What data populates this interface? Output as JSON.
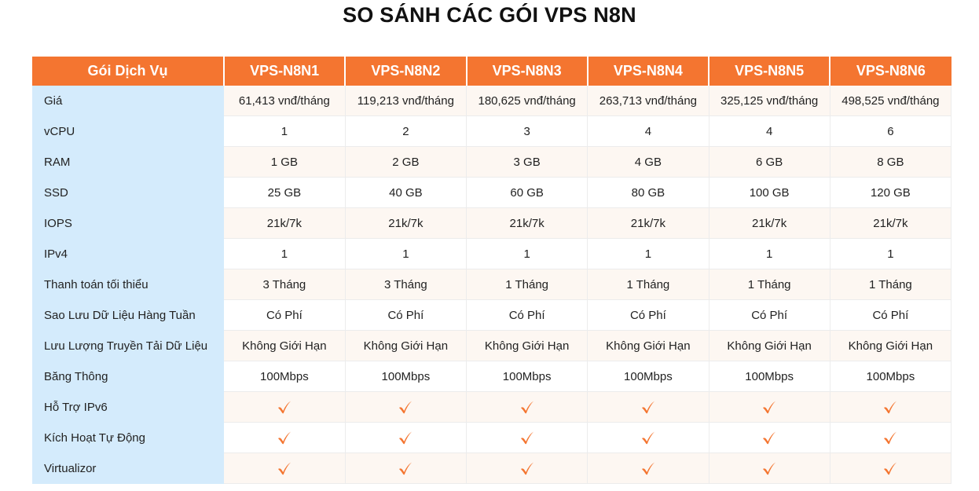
{
  "title": "SO SÁNH CÁC GÓI VPS N8N",
  "colors": {
    "header_bg": "#f47530",
    "label_bg": "#d4ebfc",
    "check": "#f47530"
  },
  "table": {
    "header": [
      "Gói Dịch Vụ",
      "VPS-N8N1",
      "VPS-N8N2",
      "VPS-N8N3",
      "VPS-N8N4",
      "VPS-N8N5",
      "VPS-N8N6"
    ],
    "rows": [
      {
        "label": "Giá",
        "values": [
          "61,413 vnđ/tháng",
          "119,213 vnđ/tháng",
          "180,625 vnđ/tháng",
          "263,713 vnđ/tháng",
          "325,125 vnđ/tháng",
          "498,525 vnđ/tháng"
        ]
      },
      {
        "label": "vCPU",
        "values": [
          "1",
          "2",
          "3",
          "4",
          "4",
          "6"
        ]
      },
      {
        "label": "RAM",
        "values": [
          "1 GB",
          "2 GB",
          "3 GB",
          "4 GB",
          "6 GB",
          "8 GB"
        ]
      },
      {
        "label": "SSD",
        "values": [
          "25 GB",
          "40 GB",
          "60 GB",
          "80 GB",
          "100 GB",
          "120 GB"
        ]
      },
      {
        "label": "IOPS",
        "values": [
          "21k/7k",
          "21k/7k",
          "21k/7k",
          "21k/7k",
          "21k/7k",
          "21k/7k"
        ]
      },
      {
        "label": "IPv4",
        "values": [
          "1",
          "1",
          "1",
          "1",
          "1",
          "1"
        ]
      },
      {
        "label": "Thanh toán tối thiểu",
        "values": [
          "3 Tháng",
          "3 Tháng",
          "1 Tháng",
          "1 Tháng",
          "1 Tháng",
          "1 Tháng"
        ]
      },
      {
        "label": "Sao Lưu Dữ Liệu Hàng Tuần",
        "values": [
          "Có Phí",
          "Có Phí",
          "Có Phí",
          "Có Phí",
          "Có Phí",
          "Có Phí"
        ]
      },
      {
        "label": "Lưu Lượng Truyền Tải Dữ Liệu",
        "values": [
          "Không Giới Hạn",
          "Không Giới Hạn",
          "Không Giới Hạn",
          "Không Giới Hạn",
          "Không Giới Hạn",
          "Không Giới Hạn"
        ]
      },
      {
        "label": "Băng Thông",
        "values": [
          "100Mbps",
          "100Mbps",
          "100Mbps",
          "100Mbps",
          "100Mbps",
          "100Mbps"
        ]
      },
      {
        "label": "Hỗ Trợ IPv6",
        "checks": [
          true,
          true,
          true,
          true,
          true,
          true
        ]
      },
      {
        "label": "Kích Hoạt Tự Động",
        "checks": [
          true,
          true,
          true,
          true,
          true,
          true
        ]
      },
      {
        "label": "Virtualizor",
        "checks": [
          true,
          true,
          true,
          true,
          true,
          true
        ]
      }
    ]
  }
}
